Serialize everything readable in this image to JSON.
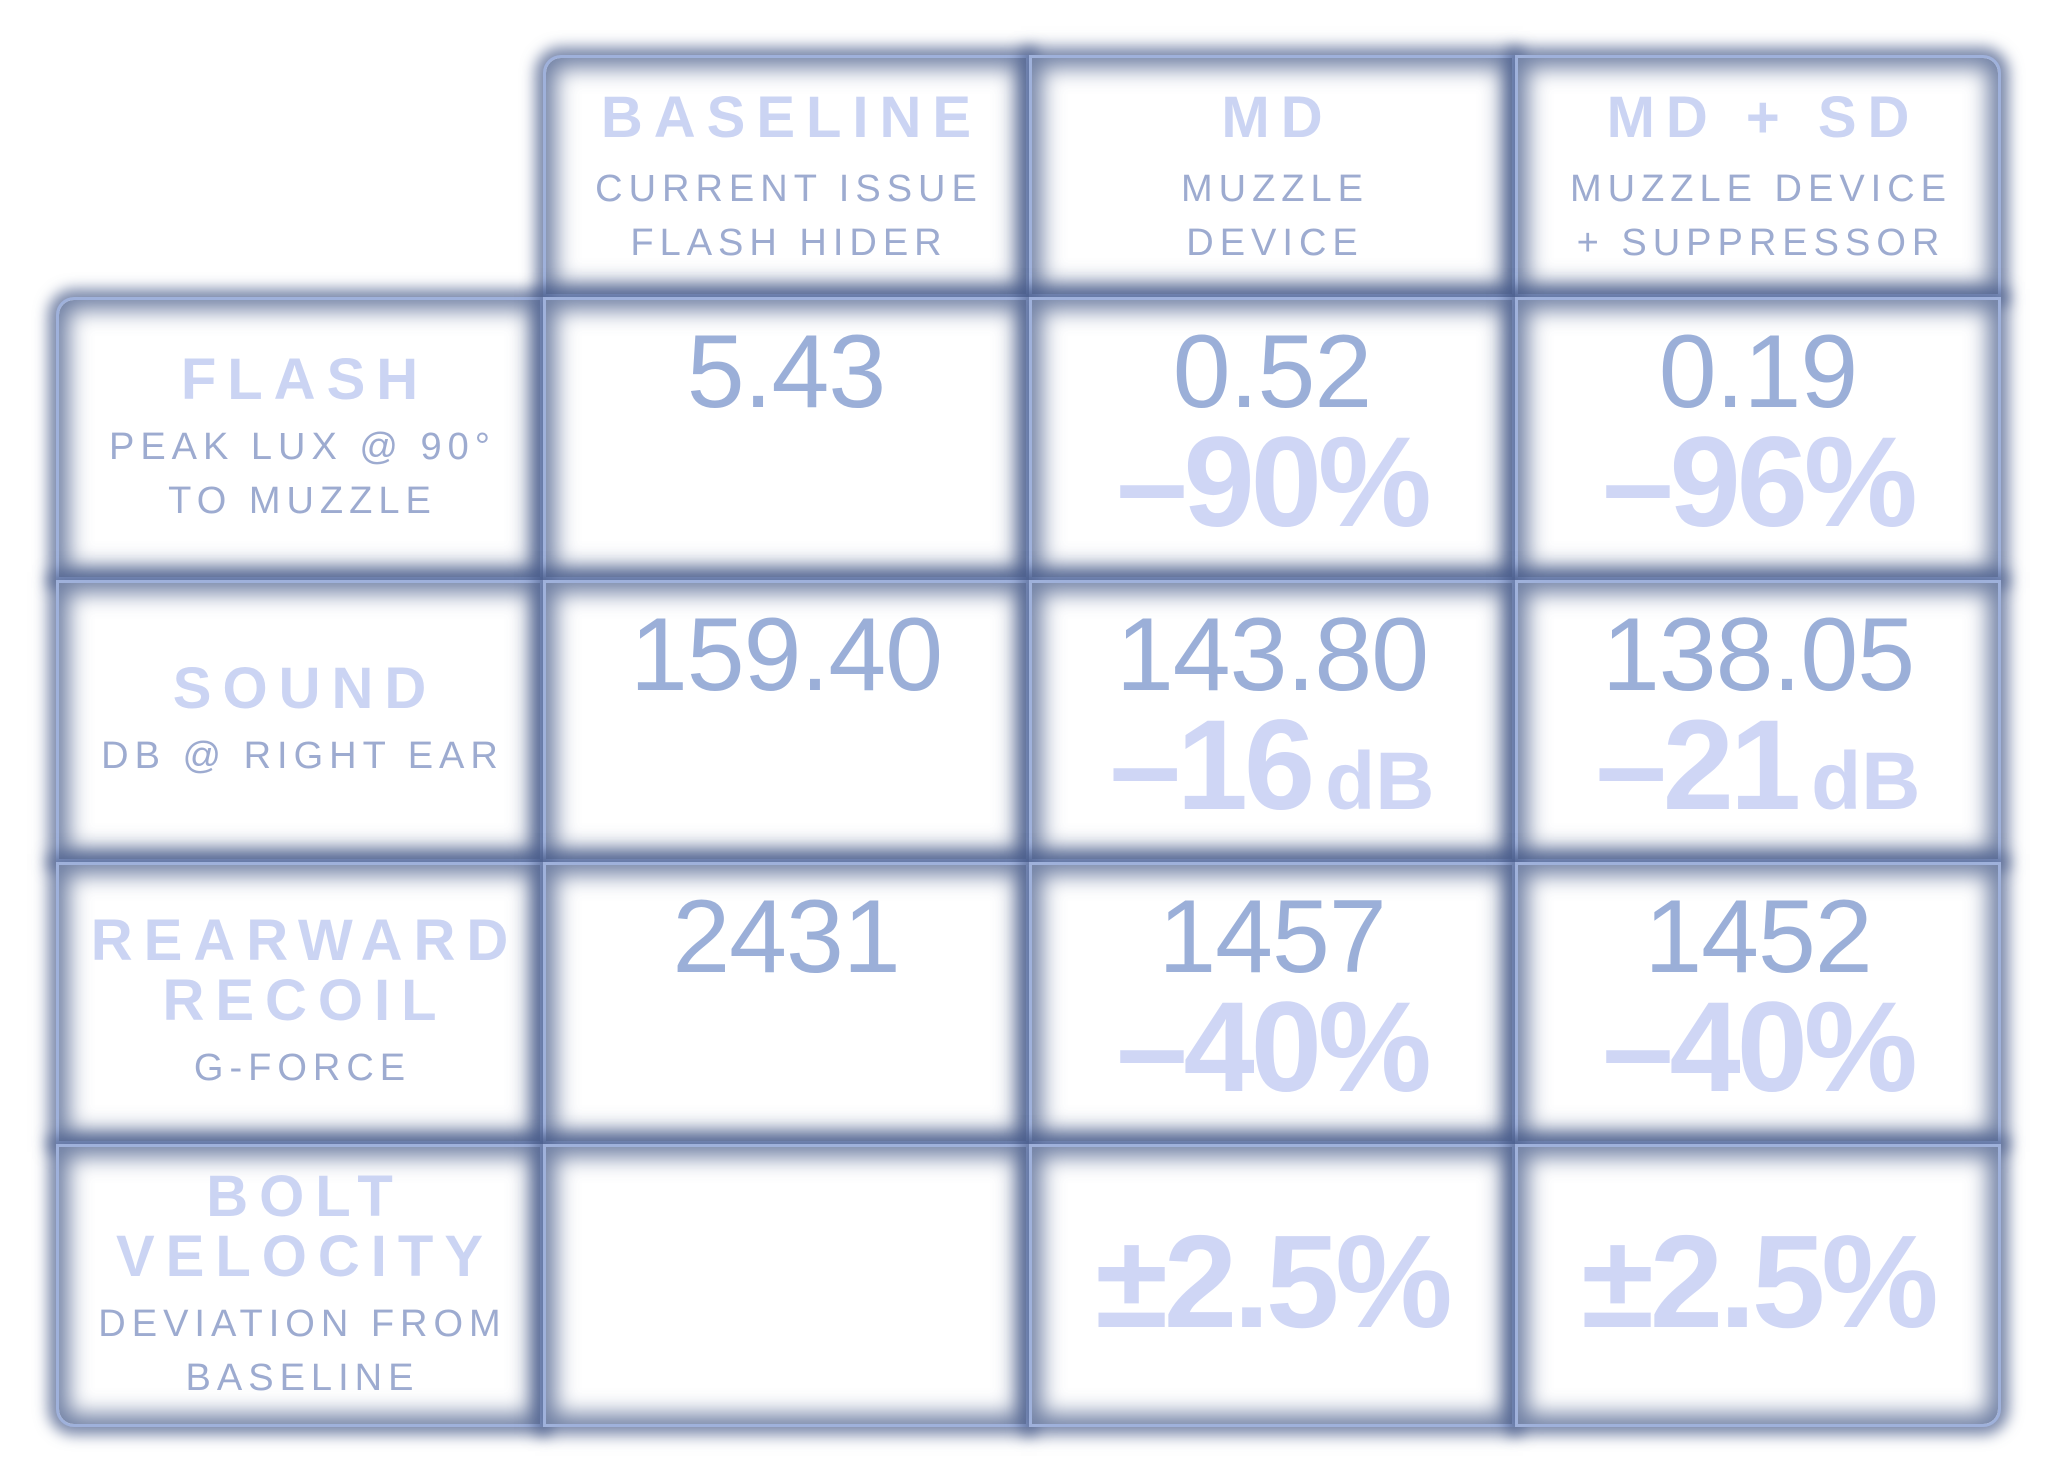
{
  "chart_data": {
    "type": "table",
    "columns": [
      {
        "title": "BASELINE",
        "subtitle": [
          "CURRENT ISSUE",
          "FLASH HIDER"
        ]
      },
      {
        "title": "MD",
        "subtitle": [
          "MUZZLE",
          "DEVICE"
        ]
      },
      {
        "title": "MD + SD",
        "subtitle": [
          "MUZZLE DEVICE",
          "+ SUPPRESSOR"
        ]
      }
    ],
    "rows": [
      {
        "title": [
          "FLASH"
        ],
        "subtitle": [
          "PEAK LUX @ 90°",
          "TO MUZZLE"
        ],
        "cells": [
          {
            "value": "5.43",
            "delta": "",
            "unit": ""
          },
          {
            "value": "0.52",
            "delta": "–90%",
            "unit": ""
          },
          {
            "value": "0.19",
            "delta": "–96%",
            "unit": ""
          }
        ]
      },
      {
        "title": [
          "SOUND"
        ],
        "subtitle": [
          "DB @ RIGHT EAR"
        ],
        "cells": [
          {
            "value": "159.40",
            "delta": "",
            "unit": ""
          },
          {
            "value": "143.80",
            "delta": "–16",
            "unit": "dB"
          },
          {
            "value": "138.05",
            "delta": "–21",
            "unit": "dB"
          }
        ]
      },
      {
        "title": [
          "REARWARD",
          "RECOIL"
        ],
        "subtitle": [
          "G-FORCE"
        ],
        "cells": [
          {
            "value": "2431",
            "delta": "",
            "unit": ""
          },
          {
            "value": "1457",
            "delta": "–40%",
            "unit": ""
          },
          {
            "value": "1452",
            "delta": "–40%",
            "unit": ""
          }
        ]
      },
      {
        "title": [
          "BOLT",
          "VELOCITY"
        ],
        "subtitle": [
          "DEVIATION FROM",
          "BASELINE"
        ],
        "cells": [
          {
            "value": "",
            "delta": "",
            "unit": ""
          },
          {
            "value": "",
            "delta": "±2.5%",
            "unit": ""
          },
          {
            "value": "",
            "delta": "±2.5%",
            "unit": ""
          }
        ]
      }
    ],
    "colors": {
      "frame": "#485c8a",
      "border": "#9fb1db",
      "title_text": "#cbd4f3",
      "subtitle_text": "#9dabd0",
      "value_text": "#9bafd8",
      "delta_text": "#cfd6f5"
    }
  }
}
